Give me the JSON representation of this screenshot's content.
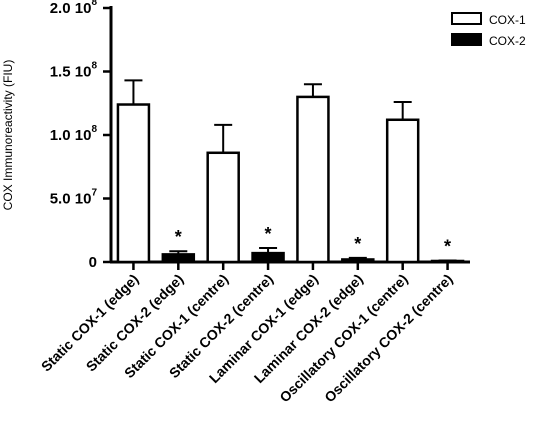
{
  "chart_data": {
    "type": "bar",
    "ylabel": "COX Immunoreactivity (FIU)",
    "ylim": [
      0,
      200000000
    ],
    "yticks": [
      {
        "value": 0,
        "mantissa": "0",
        "exponent": ""
      },
      {
        "value": 50000000,
        "mantissa": "5.0 10",
        "exponent": "7"
      },
      {
        "value": 100000000,
        "mantissa": "1.0 10",
        "exponent": "8"
      },
      {
        "value": 150000000,
        "mantissa": "1.5 10",
        "exponent": "8"
      },
      {
        "value": 200000000,
        "mantissa": "2.0 10",
        "exponent": "8"
      }
    ],
    "categories": [
      "Static COX-1 (edge)",
      "Static COX-2 (edge)",
      "Static COX-1 (centre)",
      "Static COX-2 (centre)",
      "Laminar COX-1 (edge)",
      "Laminar COX-2 (edge)",
      "Oscillatory COX-1 (centre)",
      "Oscillatory COX-2 (centre)"
    ],
    "values": [
      124000000,
      6000000,
      86000000,
      7000000,
      130000000,
      2000000,
      112000000,
      800000
    ],
    "errors": [
      19000000,
      2500000,
      22000000,
      4000000,
      10000000,
      1200000,
      14000000,
      400000
    ],
    "series_of_bar": [
      0,
      1,
      0,
      1,
      0,
      1,
      0,
      1
    ],
    "annotations": [
      "",
      "*",
      "",
      "*",
      "",
      "*",
      "",
      "*"
    ],
    "legend": {
      "placement": "top-right",
      "entries": [
        {
          "label": "COX-1",
          "fill": "#ffffff"
        },
        {
          "label": "COX-2",
          "fill": "#000000"
        }
      ]
    },
    "grid": false
  }
}
